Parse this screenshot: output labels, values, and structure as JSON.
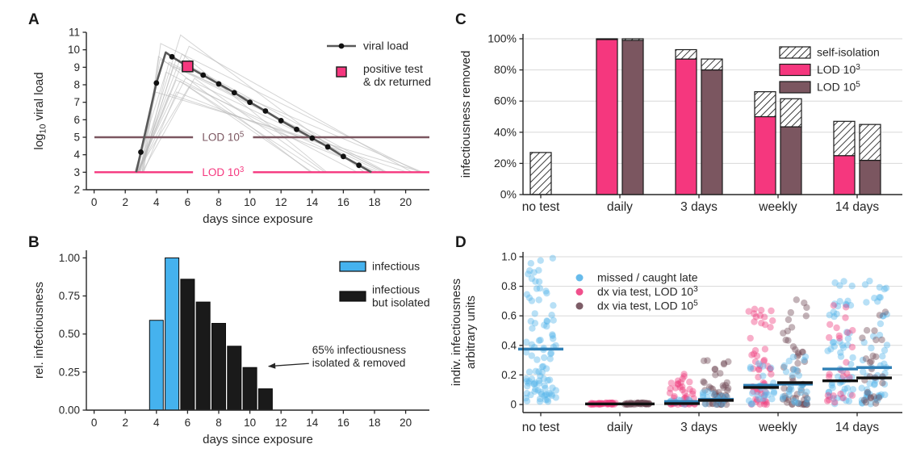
{
  "panel_labels": {
    "a": "A",
    "b": "B",
    "c": "C",
    "d": "D"
  },
  "colors": {
    "pink": "#F5377E",
    "brown": "#7B5660",
    "blue": "#45B2EE",
    "black_bar": "#1a1a1a",
    "dark_line": "#595959",
    "trajectory_gray": "#b9b9b9",
    "grid": "#d8d8d8",
    "text": "#262626",
    "point_blue": "#56B4E9",
    "point_pink": "#EE3D7F",
    "point_brown": "#6F4B56",
    "mean_blue": "#2F7FB5",
    "mean_black": "#111111"
  },
  "chart_data": [
    {
      "panel": "A",
      "type": "line",
      "xlabel": "days since exposure",
      "ylabel_parts": [
        {
          "t": "log"
        },
        {
          "t": "10",
          "s": "sub"
        },
        {
          "t": " viral load"
        }
      ],
      "xlim": [
        -0.5,
        21.5
      ],
      "ylim": [
        2,
        11
      ],
      "xticks": [
        0,
        2,
        4,
        6,
        8,
        10,
        12,
        14,
        16,
        18,
        20
      ],
      "yticks": [
        2,
        3,
        4,
        5,
        6,
        7,
        8,
        9,
        10,
        11
      ],
      "lod_lines": [
        {
          "y": 5,
          "color_key": "brown",
          "label_parts": [
            {
              "t": "LOD 10"
            },
            {
              "t": "5",
              "s": "sup"
            }
          ],
          "label_gap_days": [
            6.35,
            10.2
          ]
        },
        {
          "y": 3,
          "color_key": "pink",
          "label_parts": [
            {
              "t": "LOD 10"
            },
            {
              "t": "3",
              "s": "sup"
            }
          ],
          "label_gap_days": [
            6.35,
            10.2
          ]
        }
      ],
      "viral_load_curve": [
        [
          2.7,
          3.0
        ],
        [
          3,
          4.15
        ],
        [
          4,
          8.1
        ],
        [
          4.6,
          9.85
        ],
        [
          5,
          9.6
        ],
        [
          6,
          9.05
        ],
        [
          7,
          8.55
        ],
        [
          8,
          8.05
        ],
        [
          9,
          7.55
        ],
        [
          10,
          7.0
        ],
        [
          11,
          6.5
        ],
        [
          12,
          5.95
        ],
        [
          13,
          5.45
        ],
        [
          14,
          4.95
        ],
        [
          15,
          4.45
        ],
        [
          16,
          3.9
        ],
        [
          17,
          3.4
        ],
        [
          17.8,
          3.0
        ]
      ],
      "marker_days": [
        3,
        4,
        5,
        7,
        8,
        9,
        10,
        11,
        12,
        13,
        14,
        15,
        16,
        17
      ],
      "positive_test_marker": {
        "day": 6,
        "value": 9.05
      },
      "legend": {
        "line_label": "viral load",
        "square_label_line1": "positive test",
        "square_label_line2": "& dx returned"
      },
      "background_trajectories": {
        "count": 18,
        "seed": 11,
        "t_start_range": [
          2.45,
          3.3
        ],
        "t_peak_range": [
          3.9,
          6.5
        ],
        "v_peak_range": [
          7.3,
          10.9
        ],
        "t_end_range": [
          13.5,
          22.5
        ]
      }
    },
    {
      "panel": "B",
      "type": "bar",
      "xlabel": "days since exposure",
      "ylabel": "rel. infectiousness",
      "xticks": [
        0,
        2,
        4,
        6,
        8,
        10,
        12,
        14,
        16,
        18,
        20
      ],
      "yticks": [
        0,
        0.25,
        0.5,
        0.75,
        1
      ],
      "ytick_labels": [
        "0.00",
        "0.25",
        "0.50",
        "0.75",
        "1.00"
      ],
      "categories_days": [
        4,
        5,
        6,
        7,
        8,
        9,
        10,
        11
      ],
      "values": [
        0.59,
        1.0,
        0.86,
        0.71,
        0.57,
        0.42,
        0.28,
        0.14
      ],
      "infectious_days": [
        4,
        5
      ],
      "legend": [
        {
          "label_lines": [
            "infectious"
          ],
          "color_key": "blue"
        },
        {
          "label_lines": [
            "infectious",
            "but isolated"
          ],
          "color_key": "black_bar"
        }
      ],
      "annotation": {
        "lines": [
          "65% infectiousness",
          "isolated & removed"
        ],
        "text_day": 14,
        "text_value": 0.37,
        "target_day": 11.2,
        "target_value": 0.288
      }
    },
    {
      "panel": "C",
      "type": "stacked-bar",
      "ylabel": "infectiousness removed",
      "yticks": [
        0,
        20,
        40,
        60,
        80,
        100
      ],
      "ytick_labels": [
        "0%",
        "20%",
        "40%",
        "60%",
        "80%",
        "100%"
      ],
      "categories": [
        "no test",
        "daily",
        "3 days",
        "weekly",
        "14 days"
      ],
      "legend": [
        {
          "kind": "hatch",
          "label_parts": [
            {
              "t": "self-isolation"
            }
          ]
        },
        {
          "kind": "lod3",
          "label_parts": [
            {
              "t": "LOD 10"
            },
            {
              "t": "3",
              "s": "sup"
            }
          ]
        },
        {
          "kind": "lod5",
          "label_parts": [
            {
              "t": "LOD 10"
            },
            {
              "t": "5",
              "s": "sup"
            }
          ]
        }
      ],
      "groups": [
        {
          "category": "no test",
          "bars": [
            {
              "kind": "hatch",
              "solid_pct": 0,
              "total_pct": 27
            }
          ]
        },
        {
          "category": "daily",
          "bars": [
            {
              "kind": "lod3",
              "solid_pct": 99.5,
              "total_pct": 100
            },
            {
              "kind": "lod5",
              "solid_pct": 99,
              "total_pct": 100
            }
          ]
        },
        {
          "category": "3 days",
          "bars": [
            {
              "kind": "lod3",
              "solid_pct": 87,
              "total_pct": 93
            },
            {
              "kind": "lod5",
              "solid_pct": 80,
              "total_pct": 87
            }
          ]
        },
        {
          "category": "weekly",
          "bars": [
            {
              "kind": "lod3",
              "solid_pct": 50,
              "total_pct": 66
            },
            {
              "kind": "lod5",
              "solid_pct": 43.5,
              "total_pct": 61.5
            }
          ]
        },
        {
          "category": "14 days",
          "bars": [
            {
              "kind": "lod3",
              "solid_pct": 25,
              "total_pct": 47
            },
            {
              "kind": "lod5",
              "solid_pct": 22,
              "total_pct": 45
            }
          ]
        }
      ]
    },
    {
      "panel": "D",
      "type": "jitter-scatter",
      "ylabel_lines": [
        "indiv. infectiousness",
        "arbitrary units"
      ],
      "yticks": [
        0,
        0.2,
        0.4,
        0.6,
        0.8,
        1
      ],
      "ytick_labels": [
        "0",
        "0.2",
        "0.4",
        "0.6",
        "0.8",
        "1.0"
      ],
      "categories": [
        "no test",
        "daily",
        "3 days",
        "weekly",
        "14 days"
      ],
      "legend": [
        {
          "series": "missed",
          "label_parts": [
            {
              "t": "missed / caught late"
            }
          ]
        },
        {
          "series": "lod3",
          "label_parts": [
            {
              "t": "dx via test, LOD 10"
            },
            {
              "t": "3",
              "s": "sup"
            }
          ]
        },
        {
          "series": "lod5",
          "label_parts": [
            {
              "t": "dx via test, LOD 10"
            },
            {
              "t": "5",
              "s": "sup"
            }
          ]
        }
      ],
      "seed": 42,
      "strips": [
        {
          "category": "no test",
          "side": 0,
          "mean_blue": 0.375,
          "clouds": [
            {
              "series": "missed",
              "n": 95,
              "min": 0.02,
              "max": 1.0,
              "power": 1.7
            }
          ]
        },
        {
          "category": "daily",
          "side": -1,
          "mean_black": 0.004,
          "clouds": [
            {
              "series": "lod3",
              "n": 42,
              "min": 0,
              "max": 0.012,
              "power": 1
            }
          ]
        },
        {
          "category": "daily",
          "side": 1,
          "mean_black": 0.004,
          "clouds": [
            {
              "series": "lod5",
              "n": 42,
              "min": 0,
              "max": 0.012,
              "power": 1
            }
          ]
        },
        {
          "category": "3 days",
          "side": -1,
          "mean_blue": 0.02,
          "mean_black": 0.006,
          "clouds": [
            {
              "series": "lod3",
              "n": 46,
              "min": 0,
              "max": 0.21,
              "power": 2.3
            },
            {
              "series": "missed",
              "n": 10,
              "min": 0,
              "max": 0.035,
              "power": 1
            }
          ]
        },
        {
          "category": "3 days",
          "side": 1,
          "mean_blue": 0.035,
          "mean_black": 0.028,
          "clouds": [
            {
              "series": "lod5",
              "n": 46,
              "min": 0,
              "max": 0.3,
              "power": 2.2
            },
            {
              "series": "missed",
              "n": 14,
              "min": 0,
              "max": 0.09,
              "power": 1.2
            }
          ]
        },
        {
          "category": "weekly",
          "side": -1,
          "mean_blue": 0.13,
          "mean_black": 0.115,
          "clouds": [
            {
              "series": "lod3",
              "n": 52,
              "min": 0,
              "max": 0.66,
              "power": 1.9
            },
            {
              "series": "missed",
              "n": 26,
              "min": 0,
              "max": 0.3,
              "power": 1.4
            }
          ]
        },
        {
          "category": "weekly",
          "side": 1,
          "mean_blue": 0.138,
          "mean_black": 0.148,
          "clouds": [
            {
              "series": "lod5",
              "n": 52,
              "min": 0,
              "max": 0.72,
              "power": 1.9
            },
            {
              "series": "missed",
              "n": 26,
              "min": 0,
              "max": 0.36,
              "power": 1.4
            }
          ]
        },
        {
          "category": "14 days",
          "side": -1,
          "mean_blue": 0.24,
          "mean_black": 0.16,
          "clouds": [
            {
              "series": "missed",
              "n": 58,
              "min": 0,
              "max": 0.85,
              "power": 1.7
            },
            {
              "series": "lod3",
              "n": 26,
              "min": 0,
              "max": 0.7,
              "power": 1.9
            }
          ]
        },
        {
          "category": "14 days",
          "side": 1,
          "mean_blue": 0.25,
          "mean_black": 0.18,
          "clouds": [
            {
              "series": "missed",
              "n": 58,
              "min": 0,
              "max": 0.87,
              "power": 1.7
            },
            {
              "series": "lod5",
              "n": 26,
              "min": 0,
              "max": 0.72,
              "power": 1.9
            }
          ]
        }
      ]
    }
  ]
}
